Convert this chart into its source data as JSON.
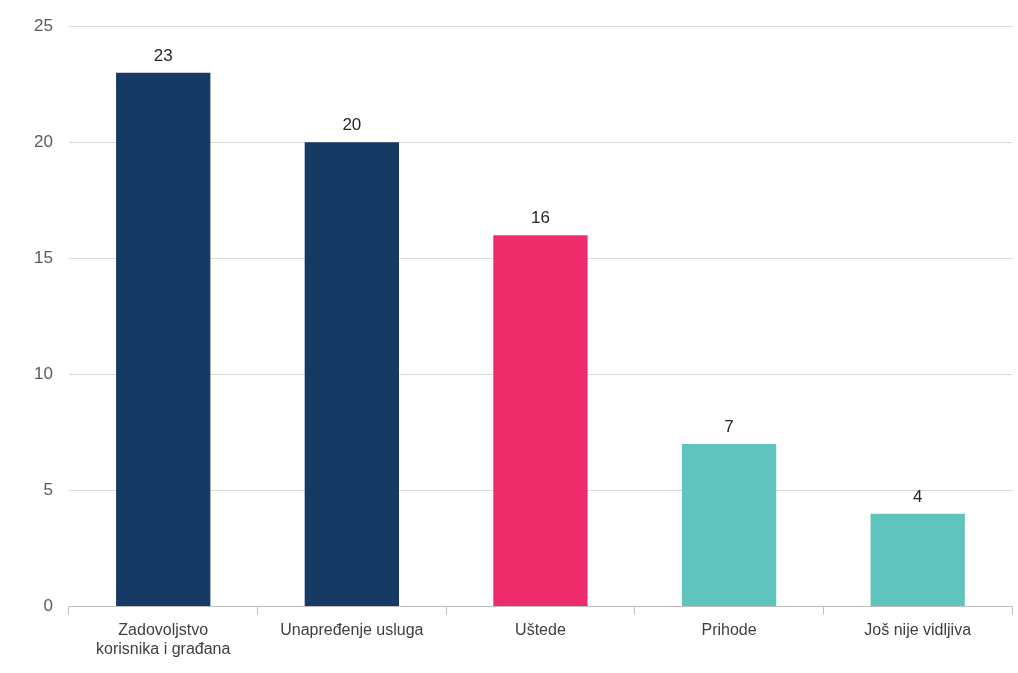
{
  "chart_data": {
    "type": "bar",
    "categories": [
      "Zadovoljstvo\nkorisnika i građana",
      "Unapređenje usluga",
      "Uštede",
      "Prihode",
      "Još nije vidljiva"
    ],
    "values": [
      23,
      20,
      16,
      7,
      4
    ],
    "colors": [
      "#173a64",
      "#173a64",
      "#ee2c6c",
      "#5fc4bd",
      "#5fc4bd"
    ],
    "ylim": [
      0,
      25
    ],
    "yticks": [
      0,
      5,
      10,
      15,
      20,
      25
    ],
    "grid": "y",
    "data_labels": true
  }
}
